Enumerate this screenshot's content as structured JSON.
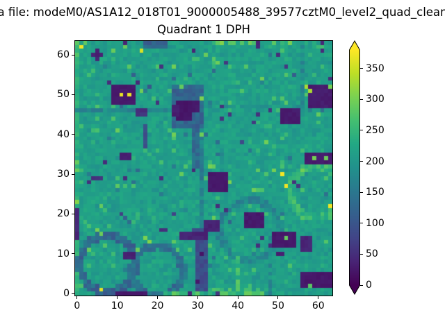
{
  "figure": {
    "suptitle": "a file: modeM0/AS1A12_018T01_9000005488_39577cztM0_level2_quad_clean",
    "title": "Quadrant 1 DPH",
    "background": "#ffffff"
  },
  "chart_data": {
    "type": "heatmap",
    "title": "Quadrant 1 DPH",
    "grid_size": 64,
    "x_axis": {
      "ticks": [
        0,
        10,
        20,
        30,
        40,
        50,
        60
      ],
      "range": [
        -0.5,
        63.5
      ]
    },
    "y_axis": {
      "ticks": [
        0,
        10,
        20,
        30,
        40,
        50,
        60
      ],
      "range": [
        -0.5,
        63.5
      ]
    },
    "colorbar": {
      "ticks": [
        0,
        50,
        100,
        150,
        200,
        250,
        300,
        350
      ],
      "vmin": 0,
      "vmax": 380,
      "extend": "both"
    },
    "colormap": {
      "name": "viridis",
      "stops": [
        [
          0,
          "#440154"
        ],
        [
          0.1,
          "#482475"
        ],
        [
          0.2,
          "#414487"
        ],
        [
          0.3,
          "#355f8d"
        ],
        [
          0.4,
          "#2a788e"
        ],
        [
          0.5,
          "#21918c"
        ],
        [
          0.6,
          "#22a884"
        ],
        [
          0.7,
          "#44bf70"
        ],
        [
          0.8,
          "#7ad151"
        ],
        [
          0.9,
          "#bddf26"
        ],
        [
          1,
          "#fde725"
        ]
      ]
    },
    "field": {
      "base": 212,
      "spread": 26,
      "bright_fraction": 0.05,
      "dark_fraction": 0.015,
      "seed": 20230615
    },
    "bright_columns": [
      {
        "x": 0,
        "add": 26
      }
    ],
    "rings": [
      [
        8.2,
        8.0,
        7.0,
        2.1,
        128
      ],
      [
        20.5,
        6.2,
        6.3,
        1.9,
        140
      ],
      [
        43.5,
        16.5,
        7.5,
        1.6,
        178
      ],
      [
        60.0,
        26.0,
        6.5,
        1.8,
        250
      ]
    ],
    "rects": [
      [
        31,
        0,
        1,
        32,
        170
      ],
      [
        31,
        32,
        1,
        15,
        165
      ],
      [
        0,
        46,
        26,
        1,
        175
      ],
      [
        32,
        47,
        32,
        1,
        195
      ],
      [
        48,
        0,
        1,
        17,
        190
      ],
      [
        56,
        48,
        1,
        15,
        188
      ],
      [
        29,
        32,
        2,
        11,
        130
      ],
      [
        24,
        42,
        8,
        11,
        125
      ],
      [
        25,
        44,
        4,
        5,
        22
      ],
      [
        28,
        46,
        3,
        3,
        25
      ],
      [
        24,
        45,
        2,
        3,
        30
      ],
      [
        26,
        14,
        7,
        2,
        38
      ],
      [
        30,
        1,
        3,
        13,
        92
      ],
      [
        9,
        48,
        6,
        5,
        26
      ],
      [
        17,
        62,
        6,
        2,
        122
      ],
      [
        51,
        43,
        5,
        4,
        28
      ],
      [
        58,
        47,
        6,
        6,
        30
      ],
      [
        57,
        33,
        7,
        3,
        28
      ],
      [
        33,
        26,
        5,
        5,
        26
      ],
      [
        42,
        17,
        5,
        4,
        27
      ],
      [
        32,
        16,
        4,
        3,
        36
      ],
      [
        29,
        16,
        3,
        1,
        85
      ],
      [
        49,
        12,
        6,
        4,
        26
      ],
      [
        56,
        11,
        3,
        4,
        40
      ],
      [
        56,
        2,
        8,
        4,
        25
      ],
      [
        12,
        9,
        3,
        2,
        34
      ],
      [
        11,
        34,
        3,
        2,
        30
      ],
      [
        15,
        45,
        3,
        2,
        55
      ],
      [
        17,
        37,
        1,
        6,
        95
      ],
      [
        10,
        0,
        8,
        1,
        28
      ],
      [
        0,
        14,
        1,
        8,
        40
      ],
      [
        22,
        0,
        25,
        1,
        250
      ],
      [
        33,
        1,
        13,
        1,
        242
      ],
      [
        40,
        1,
        1,
        9,
        248
      ],
      [
        33,
        63,
        13,
        1,
        246
      ]
    ],
    "points": [
      [
        1,
        62,
        372
      ],
      [
        16,
        61,
        358
      ],
      [
        11,
        50,
        368
      ],
      [
        13,
        50,
        368
      ],
      [
        51,
        30,
        376
      ],
      [
        52,
        27,
        372
      ],
      [
        63,
        22,
        372
      ],
      [
        6,
        1,
        366
      ],
      [
        57,
        52,
        330
      ],
      [
        58,
        51,
        332
      ],
      [
        63,
        52,
        300
      ],
      [
        59,
        34,
        300
      ],
      [
        62,
        34,
        294
      ],
      [
        38,
        28,
        305
      ],
      [
        49,
        31,
        300
      ],
      [
        56,
        31,
        298
      ],
      [
        58,
        2,
        282
      ],
      [
        52,
        14,
        290
      ],
      [
        5,
        16,
        300
      ],
      [
        6,
        15,
        294
      ],
      [
        17,
        14,
        304
      ],
      [
        18,
        13,
        310
      ],
      [
        44,
        26,
        296
      ],
      [
        0,
        33,
        290
      ],
      [
        33,
        32,
        300
      ],
      [
        34,
        32,
        288
      ],
      [
        36,
        63,
        308
      ],
      [
        43,
        63,
        296
      ],
      [
        53,
        63,
        300
      ],
      [
        2,
        63,
        286
      ],
      [
        31,
        49,
        305
      ],
      [
        26,
        52,
        288
      ],
      [
        31,
        40,
        295
      ],
      [
        5,
        61,
        35
      ],
      [
        4,
        60,
        38
      ],
      [
        5,
        60,
        30
      ],
      [
        6,
        60,
        36
      ],
      [
        5,
        59,
        40
      ],
      [
        12,
        63,
        38
      ],
      [
        29,
        61,
        40
      ],
      [
        45,
        63,
        40
      ],
      [
        61,
        63,
        42
      ],
      [
        45,
        62,
        45
      ],
      [
        61,
        61,
        48
      ],
      [
        37,
        58,
        60
      ],
      [
        21,
        57,
        55
      ],
      [
        50,
        60,
        50
      ],
      [
        52,
        57,
        64
      ],
      [
        63,
        54,
        55
      ],
      [
        45,
        45,
        55
      ],
      [
        48,
        46,
        60
      ],
      [
        44,
        43,
        64
      ],
      [
        54,
        28,
        55
      ],
      [
        55,
        27,
        60
      ],
      [
        45,
        12,
        50
      ],
      [
        48,
        12,
        52
      ],
      [
        50,
        10,
        30
      ],
      [
        51,
        10,
        34
      ],
      [
        46,
        14,
        55
      ],
      [
        21,
        16,
        50
      ],
      [
        22,
        16,
        55
      ],
      [
        31,
        10,
        20
      ],
      [
        30,
        3,
        25
      ],
      [
        12,
        29,
        50
      ],
      [
        21,
        29,
        52
      ],
      [
        4,
        29,
        50
      ],
      [
        5,
        29,
        55
      ],
      [
        6,
        29,
        60
      ],
      [
        3,
        28,
        52
      ],
      [
        7,
        33,
        48
      ],
      [
        29,
        31,
        45
      ],
      [
        11,
        20,
        72
      ],
      [
        24,
        20,
        75
      ],
      [
        41,
        38,
        85
      ],
      [
        36,
        47,
        55
      ],
      [
        38,
        45,
        60
      ],
      [
        36,
        44,
        58
      ],
      [
        15,
        53,
        45
      ],
      [
        8,
        53,
        50
      ],
      [
        20,
        48,
        55
      ],
      [
        35,
        22,
        50
      ],
      [
        37,
        21,
        55
      ],
      [
        28,
        0,
        40
      ],
      [
        35,
        0,
        60
      ]
    ]
  }
}
